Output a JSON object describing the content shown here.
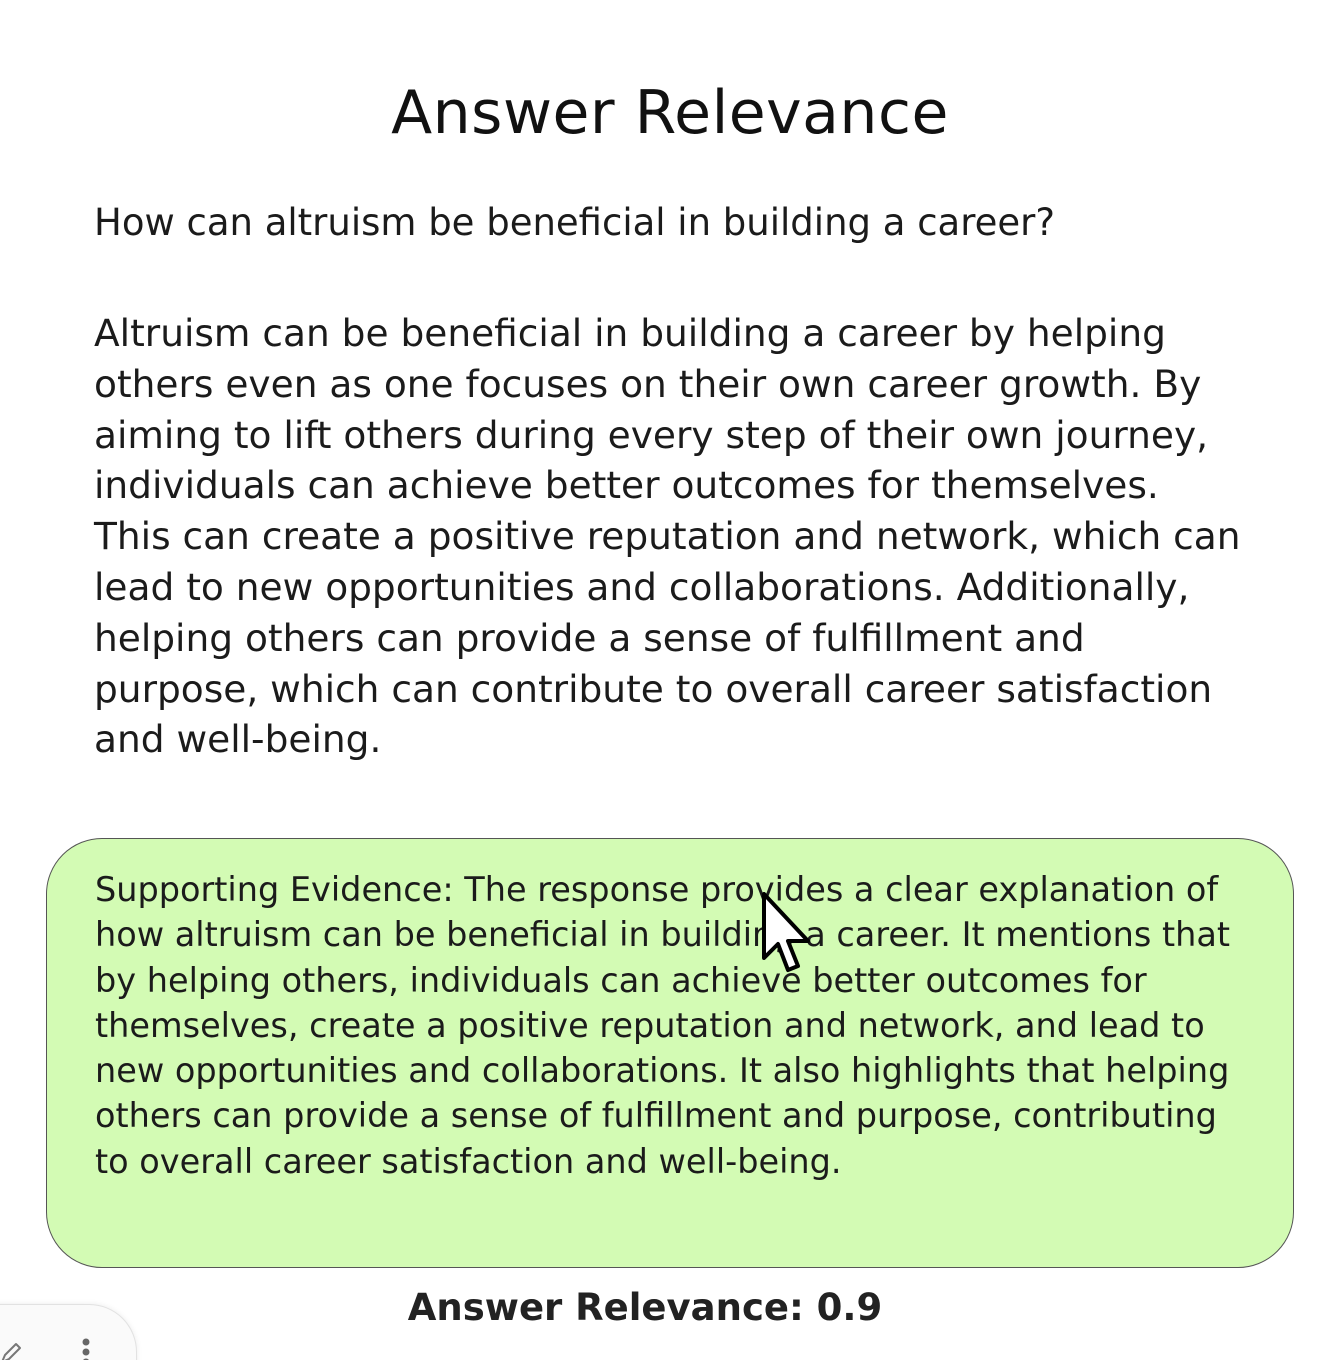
{
  "page": {
    "title": "Answer Relevance",
    "question": "How can altruism be beneficial in building a career?",
    "answer": "Altruism can be beneficial in building a career by helping others even as one focuses on their own career growth. By aiming to lift others during every step of their own journey, individuals can achieve better outcomes for themselves. This can create a positive reputation and network, which can lead to new opportunities and collaborations. Additionally, helping others can provide a sense of fulfillment and purpose, which can contribute to overall career satisfaction and well-being.",
    "evidence": "Supporting Evidence: The response provides a clear explanation of how altruism can be beneficial in building a career. It mentions that by helping others, individuals can achieve better outcomes for themselves, create a positive reputation and network, and lead to new opportunities and collaborations. It also highlights that helping others can provide a sense of fulfillment and purpose, contributing to overall career satisfaction and well-being.",
    "score_label": "Answer Relevance:",
    "score_value": "0.9"
  },
  "colors": {
    "evidence_background": "#d3fbb4",
    "evidence_border": "#555555",
    "text": "#1b1b1b"
  },
  "icons": {
    "cursor": "mouse-pointer-icon",
    "corner_left": "pencil-icon",
    "corner_right": "vertical-dots-icon"
  }
}
